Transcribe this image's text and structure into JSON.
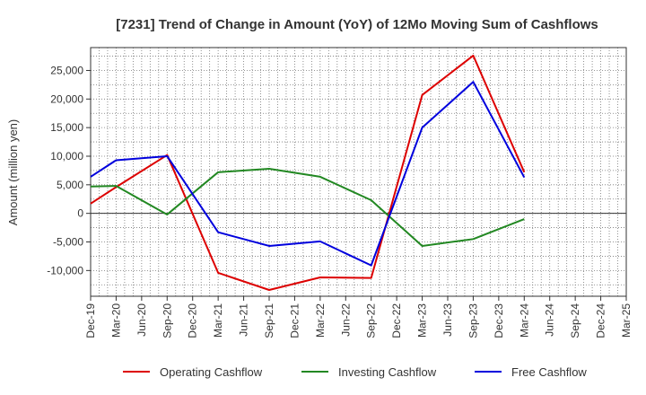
{
  "chart_data": {
    "type": "line",
    "title": "[7231]  Trend of Change in Amount (YoY) of 12Mo Moving Sum of Cashflows",
    "xlabel": "",
    "ylabel": "Amount (million yen)",
    "ylim": [
      -14500,
      29000
    ],
    "yticks": [
      -10000,
      -5000,
      0,
      5000,
      10000,
      15000,
      20000,
      25000
    ],
    "ytick_labels": [
      "-10,000",
      "-5,000",
      "0",
      "5,000",
      "10,000",
      "15,000",
      "20,000",
      "25,000"
    ],
    "categories": [
      "Dec-19",
      "Mar-20",
      "Jun-20",
      "Sep-20",
      "Dec-20",
      "Mar-21",
      "Jun-21",
      "Sep-21",
      "Dec-21",
      "Mar-22",
      "Jun-22",
      "Sep-22",
      "Dec-22",
      "Mar-23",
      "Jun-23",
      "Sep-23",
      "Dec-23",
      "Mar-24",
      "Jun-24",
      "Sep-24",
      "Dec-24",
      "Mar-25"
    ],
    "grid": true,
    "legend_position": "bottom",
    "series": [
      {
        "name": "Operating Cashflow",
        "color": "#dd0000",
        "values": [
          1700,
          4600,
          null,
          10200,
          null,
          -10400,
          null,
          -13400,
          null,
          -11200,
          null,
          -11300,
          null,
          20700,
          null,
          27600,
          null,
          7200,
          null,
          null,
          null,
          null
        ]
      },
      {
        "name": "Investing Cashflow",
        "color": "#228822",
        "values": [
          4700,
          4800,
          null,
          -200,
          null,
          7200,
          null,
          7800,
          null,
          6400,
          null,
          2300,
          null,
          -5700,
          null,
          -4500,
          null,
          -1000,
          null,
          null,
          null,
          null
        ]
      },
      {
        "name": "Free Cashflow",
        "color": "#0000dd",
        "values": [
          6400,
          9300,
          null,
          10000,
          null,
          -3300,
          null,
          -5700,
          null,
          -4900,
          null,
          -9100,
          null,
          15000,
          null,
          23000,
          null,
          6300,
          null,
          null,
          null,
          null
        ]
      }
    ]
  }
}
